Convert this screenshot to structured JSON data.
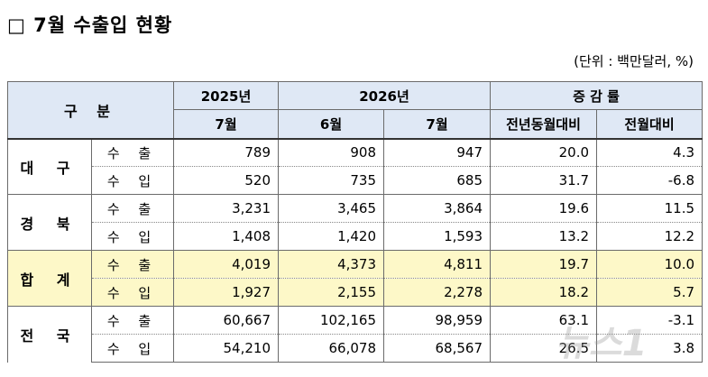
{
  "title": "□ 7월 수출입 현황",
  "unit": "(단위 : 백만달러, %)",
  "header": {
    "gubun": "구 분",
    "y2025": "2025년",
    "y2026": "2026년",
    "change": "증 감 률",
    "m2025_7": "7월",
    "m2026_6": "6월",
    "m2026_7": "7월",
    "yoy": "전년동월대비",
    "mom": "전월대비"
  },
  "regions": [
    {
      "name": "대 구",
      "rows": [
        {
          "kind": "수 출",
          "v2025_7": "789",
          "v2026_6": "908",
          "v2026_7": "947",
          "yoy": "20.0",
          "mom": "4.3"
        },
        {
          "kind": "수 입",
          "v2025_7": "520",
          "v2026_6": "735",
          "v2026_7": "685",
          "yoy": "31.7",
          "mom": "-6.8"
        }
      ]
    },
    {
      "name": "경 북",
      "rows": [
        {
          "kind": "수 출",
          "v2025_7": "3,231",
          "v2026_6": "3,465",
          "v2026_7": "3,864",
          "yoy": "19.6",
          "mom": "11.5"
        },
        {
          "kind": "수 입",
          "v2025_7": "1,408",
          "v2026_6": "1,420",
          "v2026_7": "1,593",
          "yoy": "13.2",
          "mom": "12.2"
        }
      ]
    },
    {
      "name": "합 계",
      "rows": [
        {
          "kind": "수 출",
          "v2025_7": "4,019",
          "v2026_6": "4,373",
          "v2026_7": "4,811",
          "yoy": "19.7",
          "mom": "10.0"
        },
        {
          "kind": "수 입",
          "v2025_7": "1,927",
          "v2026_6": "2,155",
          "v2026_7": "2,278",
          "yoy": "18.2",
          "mom": "5.7"
        }
      ]
    },
    {
      "name": "전 국",
      "rows": [
        {
          "kind": "수 출",
          "v2025_7": "60,667",
          "v2026_6": "102,165",
          "v2026_7": "98,959",
          "yoy": "63.1",
          "mom": "-3.1"
        },
        {
          "kind": "수 입",
          "v2025_7": "54,210",
          "v2026_6": "66,078",
          "v2026_7": "68,567",
          "yoy": "26.5",
          "mom": "3.8"
        }
      ]
    }
  ],
  "watermark": {
    "text": "뉴스1",
    "color": "#b0b0b0"
  },
  "colors": {
    "header_bg": "#dfe8f5",
    "highlight_bg": "#fdf8c8"
  }
}
